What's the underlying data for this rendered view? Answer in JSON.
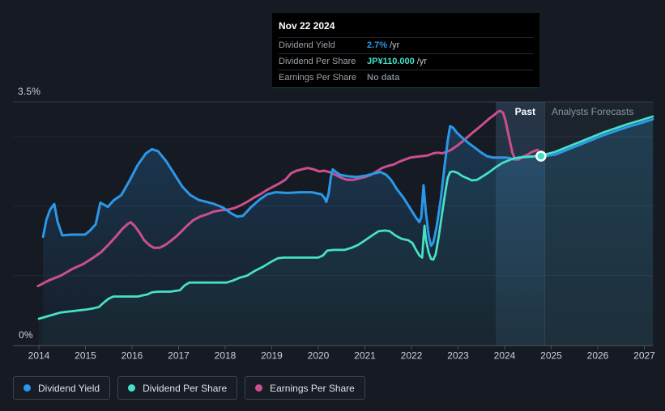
{
  "tooltip": {
    "date": "Nov 22 2024",
    "rows": [
      {
        "label": "Dividend Yield",
        "value": "2.7%",
        "suffix": "/yr",
        "value_color": "#2e9be8"
      },
      {
        "label": "Dividend Per Share",
        "value": "JP¥110.000",
        "suffix": "/yr",
        "value_color": "#45e0c6"
      },
      {
        "label": "Earnings Per Share",
        "value": "No data",
        "suffix": "",
        "value_color": "#7c848c"
      }
    ]
  },
  "legend": [
    {
      "label": "Dividend Yield",
      "color": "#2797eb"
    },
    {
      "label": "Dividend Per Share",
      "color": "#45e0c6"
    },
    {
      "label": "Earnings Per Share",
      "color": "#ca4f8d"
    }
  ],
  "chart_data": {
    "type": "line",
    "x_ticks": [
      2014,
      2015,
      2016,
      2017,
      2018,
      2019,
      2020,
      2021,
      2022,
      2023,
      2024,
      2025,
      2026,
      2027
    ],
    "xlim": [
      2013.44,
      2027.2
    ],
    "y_axis": {
      "min": 0,
      "max": 3.5,
      "min_label": "0%",
      "max_label": "3.5%",
      "gridlines": [
        1,
        2,
        3
      ],
      "unit": "percent"
    },
    "annotations": {
      "past": "Past",
      "forecast": "Analysts Forecasts"
    },
    "divider_year": 2024.86,
    "highlight_band": [
      2023.81,
      2024.86
    ],
    "marker": {
      "year": 2024.78,
      "value": 2.72
    },
    "series": [
      {
        "name": "Dividend Yield",
        "color": "#2b98e8",
        "past": [
          [
            2014.09,
            1.56
          ],
          [
            2014.16,
            1.8
          ],
          [
            2014.24,
            1.95
          ],
          [
            2014.33,
            2.03
          ],
          [
            2014.4,
            1.78
          ],
          [
            2014.5,
            1.58
          ],
          [
            2014.7,
            1.59
          ],
          [
            2014.99,
            1.59
          ],
          [
            2015.1,
            1.65
          ],
          [
            2015.22,
            1.74
          ],
          [
            2015.32,
            2.05
          ],
          [
            2015.4,
            2.02
          ],
          [
            2015.48,
            1.99
          ],
          [
            2015.6,
            2.08
          ],
          [
            2015.77,
            2.16
          ],
          [
            2015.95,
            2.37
          ],
          [
            2016.12,
            2.59
          ],
          [
            2016.3,
            2.76
          ],
          [
            2016.43,
            2.82
          ],
          [
            2016.56,
            2.79
          ],
          [
            2016.73,
            2.65
          ],
          [
            2016.9,
            2.47
          ],
          [
            2017.08,
            2.28
          ],
          [
            2017.25,
            2.16
          ],
          [
            2017.43,
            2.09
          ],
          [
            2017.6,
            2.06
          ],
          [
            2017.77,
            2.03
          ],
          [
            2017.95,
            1.98
          ],
          [
            2018.12,
            1.9
          ],
          [
            2018.26,
            1.85
          ],
          [
            2018.38,
            1.86
          ],
          [
            2018.56,
            1.99
          ],
          [
            2018.73,
            2.09
          ],
          [
            2018.9,
            2.17
          ],
          [
            2019.08,
            2.2
          ],
          [
            2019.34,
            2.19
          ],
          [
            2019.6,
            2.2
          ],
          [
            2019.86,
            2.2
          ],
          [
            2020.07,
            2.17
          ],
          [
            2020.14,
            2.11
          ],
          [
            2020.17,
            2.06
          ],
          [
            2020.22,
            2.18
          ],
          [
            2020.27,
            2.42
          ],
          [
            2020.31,
            2.53
          ],
          [
            2020.38,
            2.49
          ],
          [
            2020.47,
            2.45
          ],
          [
            2020.64,
            2.43
          ],
          [
            2020.82,
            2.42
          ],
          [
            2021.03,
            2.44
          ],
          [
            2021.2,
            2.47
          ],
          [
            2021.34,
            2.49
          ],
          [
            2021.46,
            2.45
          ],
          [
            2021.57,
            2.37
          ],
          [
            2021.69,
            2.24
          ],
          [
            2021.83,
            2.12
          ],
          [
            2021.97,
            1.97
          ],
          [
            2022.09,
            1.84
          ],
          [
            2022.17,
            1.77
          ],
          [
            2022.21,
            1.84
          ],
          [
            2022.26,
            2.3
          ],
          [
            2022.31,
            1.91
          ],
          [
            2022.37,
            1.57
          ],
          [
            2022.42,
            1.43
          ],
          [
            2022.47,
            1.48
          ],
          [
            2022.54,
            1.7
          ],
          [
            2022.63,
            2.1
          ],
          [
            2022.71,
            2.57
          ],
          [
            2022.78,
            2.95
          ],
          [
            2022.83,
            3.15
          ],
          [
            2022.89,
            3.13
          ],
          [
            2022.97,
            3.06
          ],
          [
            2023.08,
            2.99
          ],
          [
            2023.22,
            2.91
          ],
          [
            2023.36,
            2.84
          ],
          [
            2023.5,
            2.77
          ],
          [
            2023.62,
            2.72
          ],
          [
            2023.74,
            2.7
          ],
          [
            2023.88,
            2.7
          ],
          [
            2024.02,
            2.7
          ],
          [
            2024.12,
            2.69
          ],
          [
            2024.19,
            2.67
          ],
          [
            2024.3,
            2.7
          ],
          [
            2024.43,
            2.71
          ],
          [
            2024.57,
            2.71
          ],
          [
            2024.7,
            2.72
          ],
          [
            2024.85,
            2.72
          ]
        ],
        "forecast": [
          [
            2024.85,
            2.72
          ],
          [
            2025.08,
            2.74
          ],
          [
            2025.34,
            2.81
          ],
          [
            2025.6,
            2.88
          ],
          [
            2025.86,
            2.95
          ],
          [
            2026.12,
            3.02
          ],
          [
            2026.38,
            3.08
          ],
          [
            2026.64,
            3.14
          ],
          [
            2026.9,
            3.19
          ],
          [
            2027.18,
            3.25
          ]
        ]
      },
      {
        "name": "Dividend Per Share",
        "color": "#46e1c6",
        "past": [
          [
            2014.0,
            0.38
          ],
          [
            2014.21,
            0.42
          ],
          [
            2014.47,
            0.47
          ],
          [
            2014.73,
            0.49
          ],
          [
            2014.99,
            0.51
          ],
          [
            2015.17,
            0.53
          ],
          [
            2015.29,
            0.55
          ],
          [
            2015.39,
            0.61
          ],
          [
            2015.5,
            0.67
          ],
          [
            2015.6,
            0.7
          ],
          [
            2015.86,
            0.7
          ],
          [
            2016.12,
            0.7
          ],
          [
            2016.33,
            0.73
          ],
          [
            2016.43,
            0.76
          ],
          [
            2016.56,
            0.77
          ],
          [
            2016.82,
            0.77
          ],
          [
            2017.03,
            0.79
          ],
          [
            2017.13,
            0.86
          ],
          [
            2017.23,
            0.9
          ],
          [
            2017.51,
            0.9
          ],
          [
            2017.77,
            0.9
          ],
          [
            2018.03,
            0.9
          ],
          [
            2018.17,
            0.93
          ],
          [
            2018.31,
            0.97
          ],
          [
            2018.47,
            1.0
          ],
          [
            2018.64,
            1.07
          ],
          [
            2018.82,
            1.13
          ],
          [
            2018.99,
            1.2
          ],
          [
            2019.13,
            1.25
          ],
          [
            2019.25,
            1.26
          ],
          [
            2019.51,
            1.26
          ],
          [
            2019.77,
            1.26
          ],
          [
            2020.0,
            1.26
          ],
          [
            2020.1,
            1.29
          ],
          [
            2020.19,
            1.36
          ],
          [
            2020.33,
            1.37
          ],
          [
            2020.56,
            1.37
          ],
          [
            2020.71,
            1.4
          ],
          [
            2020.85,
            1.44
          ],
          [
            2021.03,
            1.52
          ],
          [
            2021.18,
            1.59
          ],
          [
            2021.3,
            1.64
          ],
          [
            2021.43,
            1.65
          ],
          [
            2021.53,
            1.64
          ],
          [
            2021.65,
            1.58
          ],
          [
            2021.79,
            1.53
          ],
          [
            2021.93,
            1.51
          ],
          [
            2022.02,
            1.47
          ],
          [
            2022.1,
            1.37
          ],
          [
            2022.17,
            1.29
          ],
          [
            2022.23,
            1.26
          ],
          [
            2022.26,
            1.55
          ],
          [
            2022.28,
            1.72
          ],
          [
            2022.31,
            1.52
          ],
          [
            2022.37,
            1.33
          ],
          [
            2022.42,
            1.24
          ],
          [
            2022.47,
            1.23
          ],
          [
            2022.52,
            1.31
          ],
          [
            2022.59,
            1.58
          ],
          [
            2022.66,
            1.91
          ],
          [
            2022.73,
            2.22
          ],
          [
            2022.78,
            2.41
          ],
          [
            2022.83,
            2.49
          ],
          [
            2022.9,
            2.5
          ],
          [
            2022.99,
            2.48
          ],
          [
            2023.1,
            2.43
          ],
          [
            2023.2,
            2.4
          ],
          [
            2023.3,
            2.37
          ],
          [
            2023.41,
            2.38
          ],
          [
            2023.53,
            2.43
          ],
          [
            2023.67,
            2.49
          ],
          [
            2023.81,
            2.56
          ],
          [
            2023.95,
            2.62
          ],
          [
            2024.09,
            2.66
          ],
          [
            2024.21,
            2.69
          ],
          [
            2024.35,
            2.7
          ],
          [
            2024.5,
            2.71
          ],
          [
            2024.68,
            2.72
          ],
          [
            2024.85,
            2.72
          ]
        ],
        "forecast": [
          [
            2024.85,
            2.74
          ],
          [
            2025.08,
            2.78
          ],
          [
            2025.34,
            2.85
          ],
          [
            2025.6,
            2.92
          ],
          [
            2025.86,
            2.99
          ],
          [
            2026.12,
            3.06
          ],
          [
            2026.38,
            3.12
          ],
          [
            2026.64,
            3.18
          ],
          [
            2026.9,
            3.23
          ],
          [
            2027.18,
            3.29
          ]
        ]
      },
      {
        "name": "Earnings Per Share",
        "color": "#ca4f8d",
        "past": [
          [
            2013.98,
            0.85
          ],
          [
            2014.21,
            0.93
          ],
          [
            2014.47,
            1.0
          ],
          [
            2014.73,
            1.1
          ],
          [
            2014.96,
            1.17
          ],
          [
            2015.17,
            1.26
          ],
          [
            2015.34,
            1.34
          ],
          [
            2015.5,
            1.45
          ],
          [
            2015.65,
            1.56
          ],
          [
            2015.79,
            1.67
          ],
          [
            2015.9,
            1.74
          ],
          [
            2015.97,
            1.77
          ],
          [
            2016.05,
            1.72
          ],
          [
            2016.16,
            1.62
          ],
          [
            2016.26,
            1.51
          ],
          [
            2016.37,
            1.44
          ],
          [
            2016.47,
            1.4
          ],
          [
            2016.59,
            1.4
          ],
          [
            2016.71,
            1.44
          ],
          [
            2016.83,
            1.5
          ],
          [
            2016.96,
            1.57
          ],
          [
            2017.08,
            1.65
          ],
          [
            2017.2,
            1.73
          ],
          [
            2017.32,
            1.8
          ],
          [
            2017.46,
            1.85
          ],
          [
            2017.6,
            1.88
          ],
          [
            2017.74,
            1.92
          ],
          [
            2017.9,
            1.94
          ],
          [
            2018.05,
            1.95
          ],
          [
            2018.19,
            1.97
          ],
          [
            2018.33,
            2.01
          ],
          [
            2018.47,
            2.06
          ],
          [
            2018.61,
            2.12
          ],
          [
            2018.75,
            2.17
          ],
          [
            2018.89,
            2.23
          ],
          [
            2019.03,
            2.28
          ],
          [
            2019.17,
            2.33
          ],
          [
            2019.29,
            2.38
          ],
          [
            2019.41,
            2.47
          ],
          [
            2019.53,
            2.51
          ],
          [
            2019.65,
            2.53
          ],
          [
            2019.77,
            2.55
          ],
          [
            2019.9,
            2.53
          ],
          [
            2020.02,
            2.5
          ],
          [
            2020.12,
            2.51
          ],
          [
            2020.24,
            2.49
          ],
          [
            2020.37,
            2.45
          ],
          [
            2020.49,
            2.41
          ],
          [
            2020.61,
            2.38
          ],
          [
            2020.75,
            2.38
          ],
          [
            2020.89,
            2.4
          ],
          [
            2021.01,
            2.42
          ],
          [
            2021.13,
            2.45
          ],
          [
            2021.25,
            2.5
          ],
          [
            2021.37,
            2.55
          ],
          [
            2021.5,
            2.58
          ],
          [
            2021.62,
            2.6
          ],
          [
            2021.74,
            2.64
          ],
          [
            2021.86,
            2.67
          ],
          [
            2021.98,
            2.7
          ],
          [
            2022.1,
            2.71
          ],
          [
            2022.23,
            2.72
          ],
          [
            2022.35,
            2.73
          ],
          [
            2022.47,
            2.76
          ],
          [
            2022.57,
            2.77
          ],
          [
            2022.66,
            2.76
          ],
          [
            2022.75,
            2.78
          ],
          [
            2022.85,
            2.81
          ],
          [
            2022.96,
            2.86
          ],
          [
            2023.06,
            2.91
          ],
          [
            2023.18,
            2.98
          ],
          [
            2023.3,
            3.05
          ],
          [
            2023.43,
            3.12
          ],
          [
            2023.55,
            3.19
          ],
          [
            2023.67,
            3.26
          ],
          [
            2023.77,
            3.31
          ],
          [
            2023.86,
            3.36
          ],
          [
            2023.91,
            3.37
          ],
          [
            2023.97,
            3.34
          ],
          [
            2024.02,
            3.23
          ],
          [
            2024.07,
            3.07
          ],
          [
            2024.12,
            2.91
          ],
          [
            2024.17,
            2.76
          ],
          [
            2024.23,
            2.67
          ],
          [
            2024.3,
            2.67
          ],
          [
            2024.38,
            2.71
          ],
          [
            2024.49,
            2.74
          ],
          [
            2024.59,
            2.78
          ],
          [
            2024.71,
            2.81
          ]
        ]
      }
    ]
  }
}
